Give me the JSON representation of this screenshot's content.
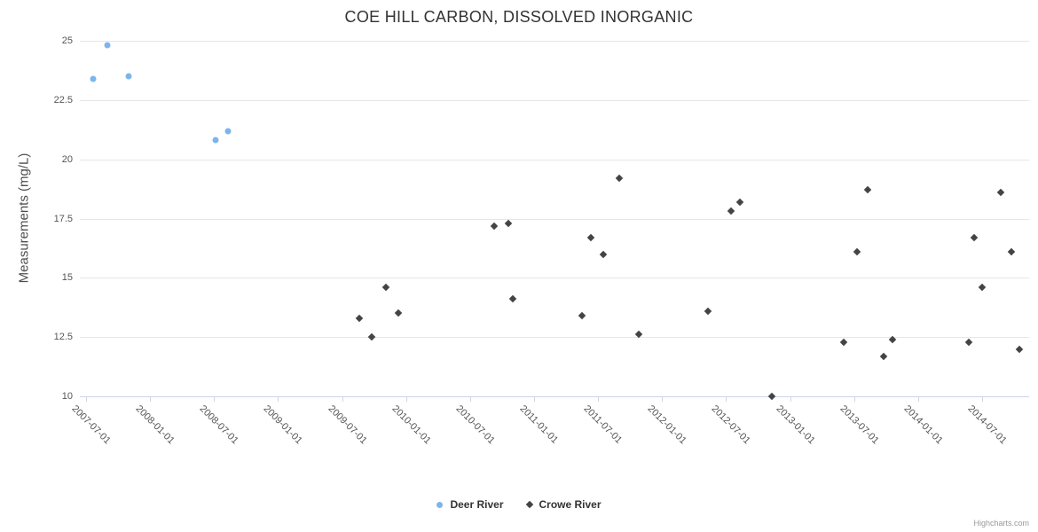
{
  "credit": "Highcharts.com",
  "chart_data": {
    "type": "scatter",
    "title": "COE HILL CARBON, DISSOLVED INORGANIC",
    "xlabel": "",
    "ylabel": "Measurements (mg/L)",
    "ylim": [
      10,
      25
    ],
    "y_ticks": [
      10,
      12.5,
      15,
      17.5,
      20,
      22.5,
      25
    ],
    "x_tick_labels": [
      "2007-07-01",
      "2008-01-01",
      "2008-07-01",
      "2009-01-01",
      "2009-07-01",
      "2010-01-01",
      "2010-07-01",
      "2011-01-01",
      "2011-07-01",
      "2012-01-01",
      "2012-07-01",
      "2013-01-01",
      "2013-07-01",
      "2014-01-01",
      "2014-07-01"
    ],
    "grid": "horizontal",
    "legend_position": "bottom-center",
    "series": [
      {
        "name": "Deer River",
        "color": "#7cb5ec",
        "marker": "circle",
        "points": [
          {
            "date": "2007-07-20",
            "value": 23.4
          },
          {
            "date": "2007-09-01",
            "value": 24.8
          },
          {
            "date": "2007-11-01",
            "value": 23.5
          },
          {
            "date": "2008-07-05",
            "value": 20.8
          },
          {
            "date": "2008-08-10",
            "value": 21.2
          }
        ]
      },
      {
        "name": "Crowe River",
        "color": "#434348",
        "marker": "diamond",
        "points": [
          {
            "date": "2009-08-20",
            "value": 13.3
          },
          {
            "date": "2009-09-25",
            "value": 12.5
          },
          {
            "date": "2009-11-05",
            "value": 14.6
          },
          {
            "date": "2009-12-10",
            "value": 13.5
          },
          {
            "date": "2010-09-10",
            "value": 17.2
          },
          {
            "date": "2010-10-20",
            "value": 17.3
          },
          {
            "date": "2010-11-01",
            "value": 14.1
          },
          {
            "date": "2011-05-15",
            "value": 13.4
          },
          {
            "date": "2011-06-10",
            "value": 16.7
          },
          {
            "date": "2011-07-15",
            "value": 16.0
          },
          {
            "date": "2011-09-01",
            "value": 19.2
          },
          {
            "date": "2011-10-25",
            "value": 12.6
          },
          {
            "date": "2012-05-10",
            "value": 13.6
          },
          {
            "date": "2012-07-15",
            "value": 17.8
          },
          {
            "date": "2012-08-10",
            "value": 18.2
          },
          {
            "date": "2012-11-10",
            "value": 10.0
          },
          {
            "date": "2013-06-01",
            "value": 12.3
          },
          {
            "date": "2013-07-10",
            "value": 16.1
          },
          {
            "date": "2013-08-10",
            "value": 18.7
          },
          {
            "date": "2013-09-25",
            "value": 11.7
          },
          {
            "date": "2013-10-20",
            "value": 12.4
          },
          {
            "date": "2014-05-25",
            "value": 12.3
          },
          {
            "date": "2014-06-10",
            "value": 16.7
          },
          {
            "date": "2014-07-01",
            "value": 14.6
          },
          {
            "date": "2014-08-25",
            "value": 18.6
          },
          {
            "date": "2014-09-25",
            "value": 16.1
          },
          {
            "date": "2014-10-15",
            "value": 12.0
          }
        ]
      }
    ]
  }
}
